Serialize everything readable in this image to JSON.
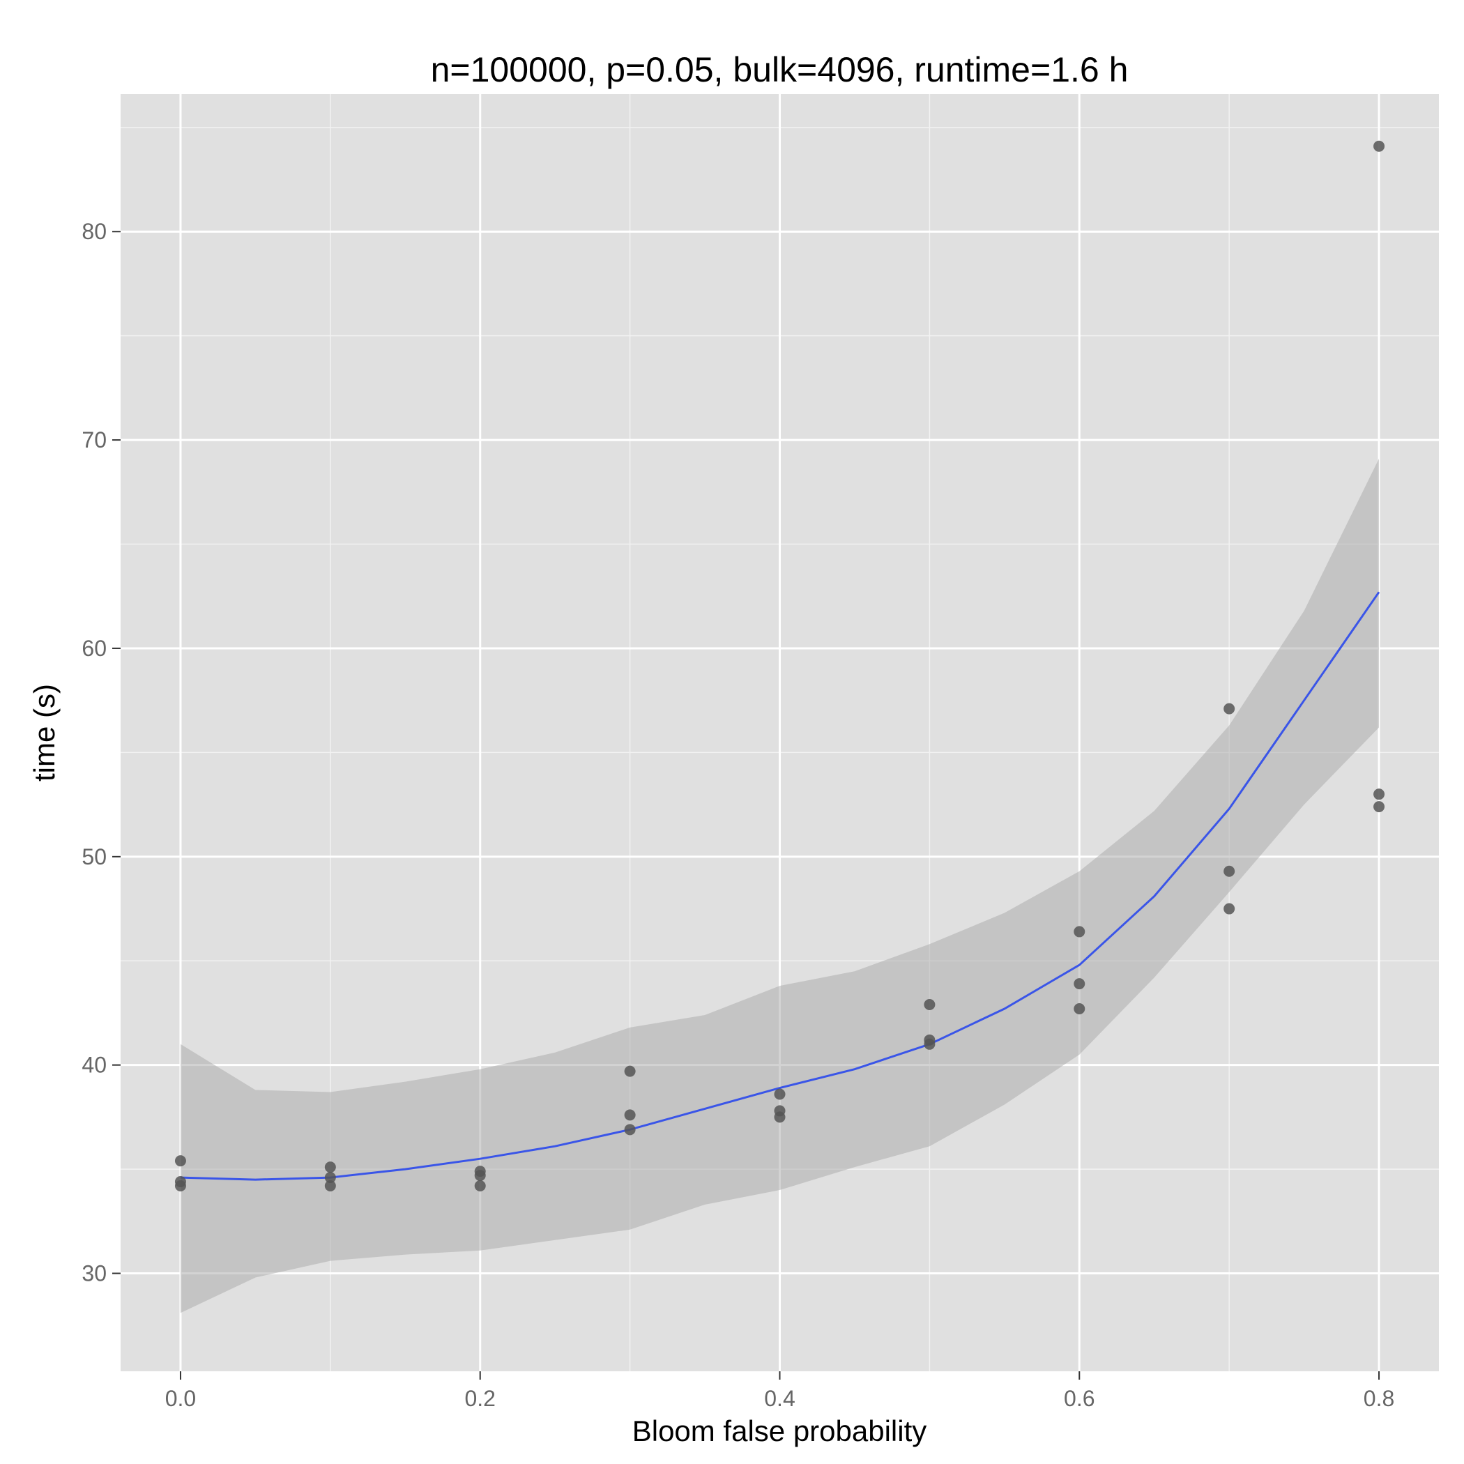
{
  "chart_data": {
    "type": "scatter",
    "title": "n=100000, p=0.05, bulk=4096, runtime=1.6 h",
    "xlabel": "Bloom false probability",
    "ylabel": "time (s)",
    "xlim": [
      -0.04,
      0.84
    ],
    "ylim": [
      25.3,
      86.6
    ],
    "x_ticks": [
      0.0,
      0.2,
      0.4,
      0.6,
      0.8
    ],
    "x_tick_labels": [
      "0.0",
      "0.2",
      "0.4",
      "0.6",
      "0.8"
    ],
    "x_minor_ticks": [
      0.1,
      0.3,
      0.5,
      0.7
    ],
    "y_ticks": [
      30,
      40,
      50,
      60,
      70,
      80
    ],
    "y_tick_labels": [
      "30",
      "40",
      "50",
      "60",
      "70",
      "80"
    ],
    "y_minor_ticks": [
      35,
      45,
      55,
      65,
      75,
      85
    ],
    "grid": true,
    "legend": "none",
    "colors": {
      "panel": "#e0e0e0",
      "grid": "#ffffff",
      "points": "#555555",
      "smooth_line": "#3a55e8",
      "ribbon": "#a8a8a8"
    },
    "series": [
      {
        "name": "observations",
        "points": [
          [
            0.0,
            35.4
          ],
          [
            0.0,
            34.4
          ],
          [
            0.0,
            34.2
          ],
          [
            0.1,
            35.1
          ],
          [
            0.1,
            34.6
          ],
          [
            0.1,
            34.2
          ],
          [
            0.2,
            34.9
          ],
          [
            0.2,
            34.7
          ],
          [
            0.2,
            34.2
          ],
          [
            0.3,
            39.7
          ],
          [
            0.3,
            37.6
          ],
          [
            0.3,
            36.9
          ],
          [
            0.4,
            38.6
          ],
          [
            0.4,
            37.8
          ],
          [
            0.4,
            37.5
          ],
          [
            0.5,
            42.9
          ],
          [
            0.5,
            41.2
          ],
          [
            0.5,
            41.0
          ],
          [
            0.6,
            46.4
          ],
          [
            0.6,
            43.9
          ],
          [
            0.6,
            42.7
          ],
          [
            0.7,
            57.1
          ],
          [
            0.7,
            49.3
          ],
          [
            0.7,
            47.5
          ],
          [
            0.8,
            84.1
          ],
          [
            0.8,
            53.0
          ],
          [
            0.8,
            52.4
          ]
        ]
      },
      {
        "name": "loess fit",
        "x": [
          0.0,
          0.05,
          0.1,
          0.15,
          0.2,
          0.25,
          0.3,
          0.35,
          0.4,
          0.45,
          0.5,
          0.55,
          0.6,
          0.65,
          0.7,
          0.75,
          0.8
        ],
        "y": [
          34.6,
          34.5,
          34.6,
          35.0,
          35.5,
          36.1,
          36.9,
          37.9,
          38.9,
          39.8,
          41.0,
          42.7,
          44.8,
          48.1,
          52.3,
          57.5,
          62.7
        ],
        "lower": [
          28.1,
          29.8,
          30.6,
          30.9,
          31.1,
          31.6,
          32.1,
          33.3,
          34.0,
          35.1,
          36.1,
          38.1,
          40.5,
          44.2,
          48.3,
          52.5,
          56.2
        ],
        "upper": [
          41.0,
          38.8,
          38.7,
          39.2,
          39.8,
          40.6,
          41.8,
          42.4,
          43.8,
          44.5,
          45.8,
          47.3,
          49.3,
          52.2,
          56.3,
          61.8,
          69.1
        ]
      }
    ]
  }
}
